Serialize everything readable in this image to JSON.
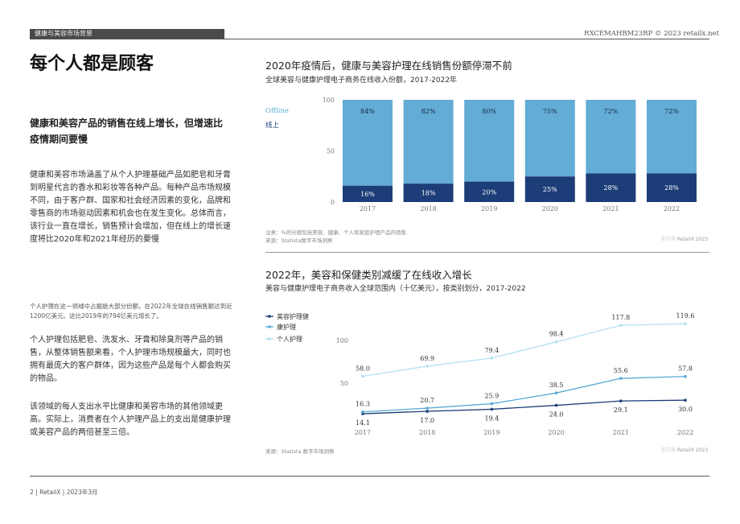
{
  "header": {
    "section_label": "健康与美容市场背景",
    "doc_code": "RXCEMAHBM23RP © 2023 retailx.net"
  },
  "left": {
    "headline": "每个人都是顾客",
    "subhead": "健康和美容产品的销售在线上增长，但增速比疫情期间要慢",
    "para1": "健康和美容市场涵盖了从个人护理基础产品如肥皂和牙膏到明星代言的香水和彩妆等各种产品。每种产品市场规模不同，由于客户群、国家和社会经济因素的变化，品牌和零售商的市场驱动因素和机会也在发生变化。总体而言，该行业一直在增长，销售预计会增加，但在线上的增长速度将比2020年和2021年经历的要慢",
    "small_note": "个人护理在这一领域中占据绝大部分份额，在2022年全球在线销售额达到近1200亿美元。这比2019年的794亿美元增长了。",
    "para2": "个人护理包括肥皂、洗发水、牙膏和除臭剂等产品的销售，从整体销售额来看，个人护理市场规模最大，同时也拥有最庞大的客户群体，因为这些产品是每个人都会购买的物品。",
    "para3": "该领域的每人支出水平比健康和美容市场的其他领域更高。实际上，消费者在个人护理产品上的支出是健康护理或美容产品的两倍甚至三倍。"
  },
  "chart1_text": {
    "title": "2020年疫情后，健康与美容护理在线销售份额停滞不前",
    "subtitle": "全球美容与健康护理电子商务在线收入份额，2017-2022年",
    "note": "注意：%的分额包括美容、健康、个人和家庭护理产品的销售",
    "source": "来源：Statista数字市场洞察",
    "brand": "ⓒⓘⓔ RetailX 2023"
  },
  "chart2_text": {
    "title": "2022年，美容和保健类别减缓了在线收入增长",
    "subtitle": "美容与健康护理电子商务收入全球范围内（十亿美元），按类别划分，2017-2022",
    "source": "来源：Statista 数字市场洞察",
    "brand": "ⓒⓘⓔ RetailX 2023"
  },
  "footer": {
    "text": "2 | RetailX | 2023年3月"
  },
  "colors": {
    "offline": "#62acd6",
    "online": "#1c3d78",
    "beauty_health": "#1c3d78",
    "health_care": "#5aaad6",
    "personal_care": "#b4e0f4"
  },
  "chart_data": [
    {
      "type": "bar",
      "stacked": true,
      "percent": true,
      "categories": [
        "2017",
        "2018",
        "2019",
        "2020",
        "2021",
        "2022"
      ],
      "series": [
        {
          "name": "线上",
          "values": [
            16,
            18,
            20,
            25,
            28,
            28
          ],
          "labels": [
            "16%",
            "18%",
            "20%",
            "25%",
            "28%",
            "28%"
          ]
        },
        {
          "name": "Offline",
          "values": [
            84,
            82,
            80,
            75,
            72,
            72
          ],
          "labels": [
            "84%",
            "82%",
            "80%",
            "75%",
            "72%",
            "72%"
          ]
        }
      ],
      "yticks": [
        "0",
        "50",
        "100"
      ],
      "ylim": [
        0,
        100
      ],
      "legend_position": "left"
    },
    {
      "type": "line",
      "categories": [
        "2017",
        "2018",
        "2019",
        "2020",
        "2021",
        "2022"
      ],
      "series": [
        {
          "name": "美容护理健",
          "values": [
            14.1,
            17.0,
            19.4,
            24.0,
            29.1,
            30.0
          ],
          "labels": [
            "14.1",
            "17.0",
            "19.4",
            "24.0",
            "29.1",
            "30.0"
          ]
        },
        {
          "name": "康护理",
          "values": [
            16.3,
            20.7,
            25.9,
            38.5,
            55.6,
            57.8
          ],
          "labels": [
            "16.3",
            "20.7",
            "25.9",
            "38.5",
            "55.6",
            "57.8"
          ]
        },
        {
          "name": "个人护理",
          "values": [
            58.0,
            69.9,
            79.4,
            98.4,
            117.8,
            119.6
          ],
          "labels": [
            "58.0",
            "69.9",
            "79.4",
            "98.4",
            "117.8",
            "119.6"
          ]
        }
      ],
      "yticks": [
        "50",
        "100"
      ],
      "ylim": [
        0,
        125
      ],
      "legend_position": "left"
    }
  ]
}
